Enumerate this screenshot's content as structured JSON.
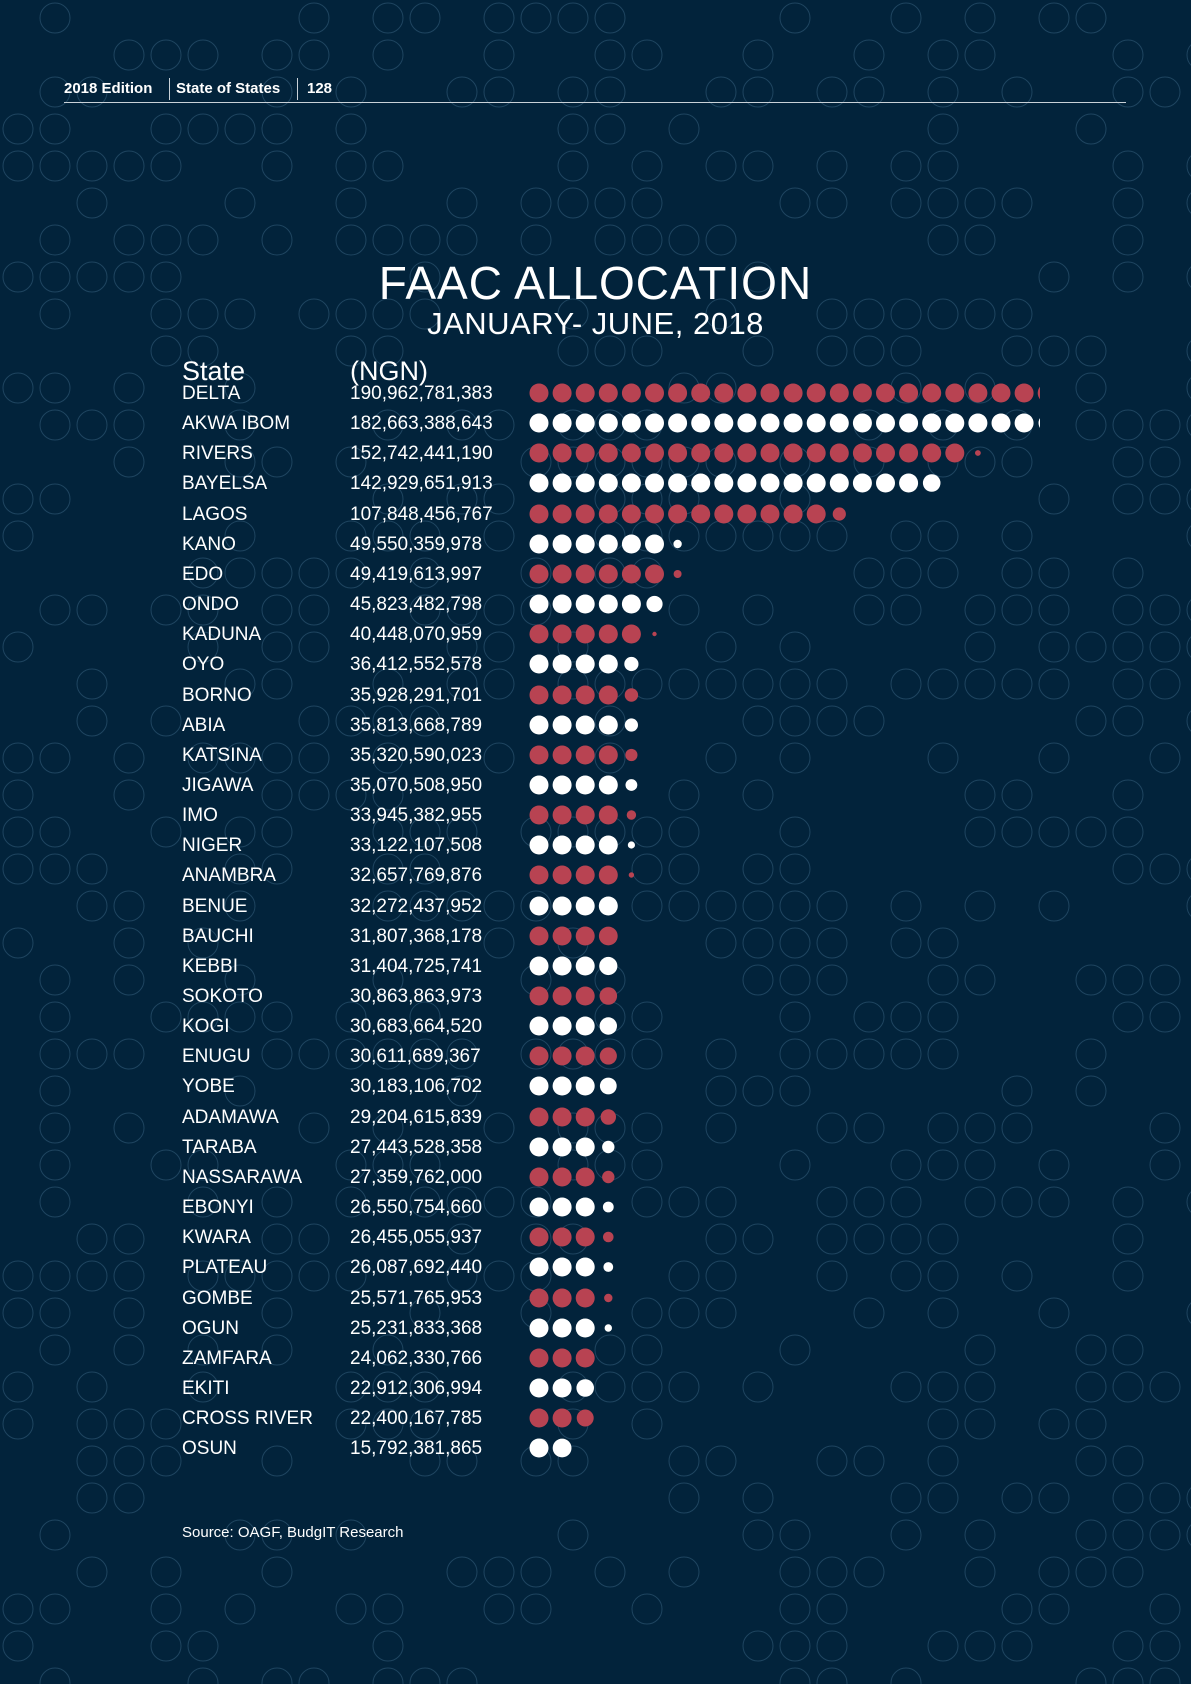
{
  "header": {
    "edition": "2018 Edition",
    "publication": "State of States",
    "page": "128"
  },
  "colors": {
    "background": "#02233b",
    "red_dot": "#b84352",
    "white_dot": "#ffffff",
    "pattern": "#1f4560"
  },
  "source": "Source: OAGF, BudgIT Research",
  "chart_data": {
    "type": "table",
    "title": "FAAC ALLOCATION",
    "subtitle": "JANUARY- JUNE, 2018",
    "columns": [
      "State",
      "(NGN)"
    ],
    "rows": [
      {
        "state": "DELTA",
        "value": "190,962,781,383",
        "amount": 190962781383,
        "color": "red"
      },
      {
        "state": "AKWA IBOM",
        "value": "182,663,388,643",
        "amount": 182663388643,
        "color": "white"
      },
      {
        "state": "RIVERS",
        "value": "152,742,441,190",
        "amount": 152742441190,
        "color": "red"
      },
      {
        "state": "BAYELSA",
        "value": "142,929,651,913",
        "amount": 142929651913,
        "color": "white"
      },
      {
        "state": "LAGOS",
        "value": "107,848,456,767",
        "amount": 107848456767,
        "color": "red"
      },
      {
        "state": "KANO",
        "value": "49,550,359,978",
        "amount": 49550359978,
        "color": "white"
      },
      {
        "state": "EDO",
        "value": "49,419,613,997",
        "amount": 49419613997,
        "color": "red"
      },
      {
        "state": "ONDO",
        "value": "45,823,482,798",
        "amount": 45823482798,
        "color": "white"
      },
      {
        "state": "KADUNA",
        "value": "40,448,070,959",
        "amount": 40448070959,
        "color": "red"
      },
      {
        "state": "OYO",
        "value": "36,412,552,578",
        "amount": 36412552578,
        "color": "white"
      },
      {
        "state": "BORNO",
        "value": "35,928,291,701",
        "amount": 35928291701,
        "color": "red"
      },
      {
        "state": "ABIA",
        "value": "35,813,668,789",
        "amount": 35813668789,
        "color": "white"
      },
      {
        "state": "KATSINA",
        "value": "35,320,590,023",
        "amount": 35320590023,
        "color": "red"
      },
      {
        "state": "JIGAWA",
        "value": "35,070,508,950",
        "amount": 35070508950,
        "color": "white"
      },
      {
        "state": "IMO",
        "value": "33,945,382,955",
        "amount": 33945382955,
        "color": "red"
      },
      {
        "state": "NIGER",
        "value": "33,122,107,508",
        "amount": 33122107508,
        "color": "white"
      },
      {
        "state": "ANAMBRA",
        "value": "32,657,769,876",
        "amount": 32657769876,
        "color": "red"
      },
      {
        "state": "BENUE",
        "value": "32,272,437,952",
        "amount": 32272437952,
        "color": "white"
      },
      {
        "state": "BAUCHI",
        "value": "31,807,368,178",
        "amount": 31807368178,
        "color": "red"
      },
      {
        "state": "KEBBI",
        "value": "31,404,725,741",
        "amount": 31404725741,
        "color": "white"
      },
      {
        "state": "SOKOTO",
        "value": "30,863,863,973",
        "amount": 30863863973,
        "color": "red"
      },
      {
        "state": "KOGI",
        "value": "30,683,664,520",
        "amount": 30683664520,
        "color": "white"
      },
      {
        "state": "ENUGU",
        "value": "30,611,689,367",
        "amount": 30611689367,
        "color": "red"
      },
      {
        "state": "YOBE",
        "value": "30,183,106,702",
        "amount": 30183106702,
        "color": "white"
      },
      {
        "state": "ADAMAWA",
        "value": "29,204,615,839",
        "amount": 29204615839,
        "color": "red"
      },
      {
        "state": "TARABA",
        "value": "27,443,528,358",
        "amount": 27443528358,
        "color": "white"
      },
      {
        "state": "NASSARAWA",
        "value": "27,359,762,000",
        "amount": 27359762000,
        "color": "red"
      },
      {
        "state": "EBONYI",
        "value": "26,550,754,660",
        "amount": 26550754660,
        "color": "white"
      },
      {
        "state": "KWARA",
        "value": "26,455,055,937",
        "amount": 26455055937,
        "color": "red"
      },
      {
        "state": "PLATEAU",
        "value": "26,087,692,440",
        "amount": 26087692440,
        "color": "white"
      },
      {
        "state": "GOMBE",
        "value": "25,571,765,953",
        "amount": 25571765953,
        "color": "red"
      },
      {
        "state": "OGUN",
        "value": "25,231,833,368",
        "amount": 25231833368,
        "color": "white"
      },
      {
        "state": "ZAMFARA",
        "value": "24,062,330,766",
        "amount": 24062330766,
        "color": "red"
      },
      {
        "state": "EKITI",
        "value": "22,912,306,994",
        "amount": 22912306994,
        "color": "white"
      },
      {
        "state": "CROSS RIVER",
        "value": "22,400,167,785",
        "amount": 22400167785,
        "color": "red"
      },
      {
        "state": "OSUN",
        "value": "15,792,381,865",
        "amount": 15792381865,
        "color": "white"
      }
    ]
  }
}
